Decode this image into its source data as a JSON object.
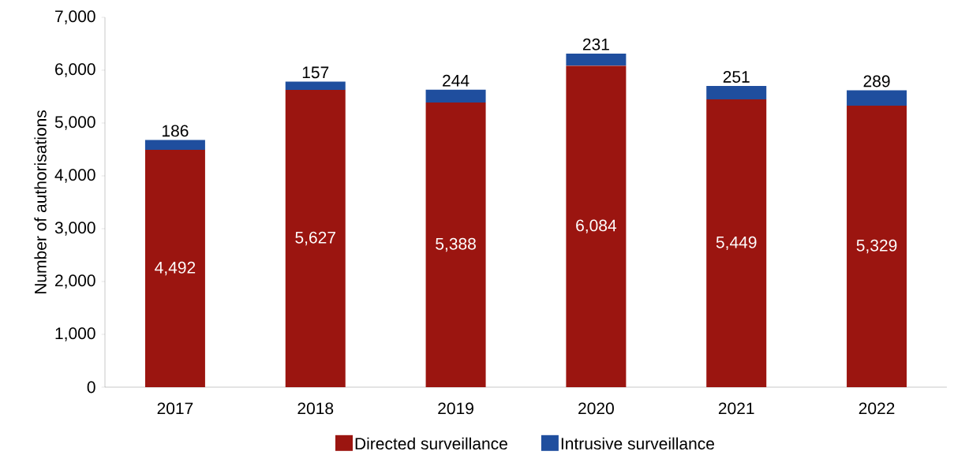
{
  "chart_data": {
    "type": "bar",
    "stacked": true,
    "ylabel": "Number of authorisations",
    "categories": [
      "2017",
      "2018",
      "2019",
      "2020",
      "2021",
      "2022"
    ],
    "series": [
      {
        "name": "Directed surveillance",
        "color": "#9b1510",
        "values": [
          4492,
          5627,
          5388,
          6084,
          5449,
          5329
        ],
        "value_labels": [
          "4,492",
          "5,627",
          "5,388",
          "6,084",
          "5,449",
          "5,329"
        ]
      },
      {
        "name": "Intrusive surveillance",
        "color": "#1f4e9e",
        "values": [
          186,
          157,
          244,
          231,
          251,
          289
        ],
        "value_labels": [
          "186",
          "157",
          "244",
          "231",
          "251",
          "289"
        ]
      }
    ],
    "ylim": [
      0,
      7000
    ],
    "yticks": [
      {
        "value": 0,
        "label": "0"
      },
      {
        "value": 1000,
        "label": "1,000"
      },
      {
        "value": 2000,
        "label": "2,000"
      },
      {
        "value": 3000,
        "label": "3,000"
      },
      {
        "value": 4000,
        "label": "4,000"
      },
      {
        "value": 5000,
        "label": "5,000"
      },
      {
        "value": 6000,
        "label": "6,000"
      },
      {
        "value": 7000,
        "label": "7,000"
      }
    ],
    "grid": false,
    "legend": "bottom"
  }
}
